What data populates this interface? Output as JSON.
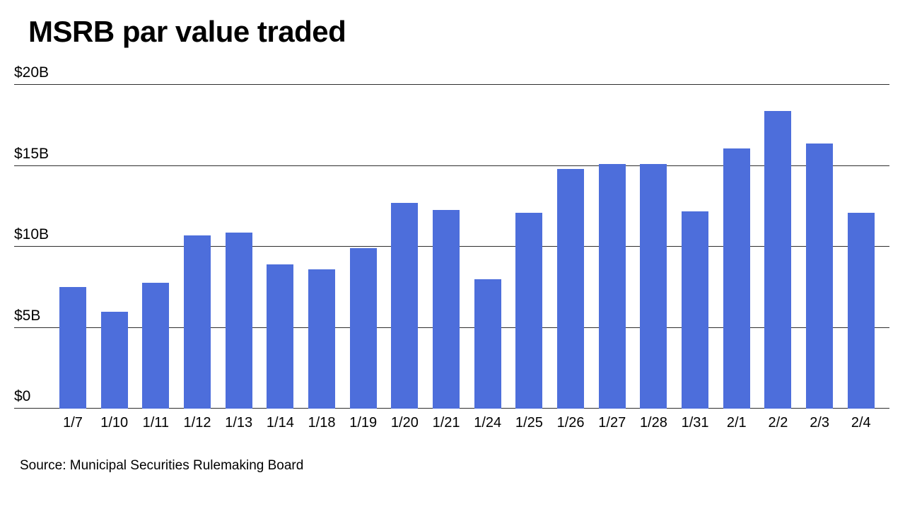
{
  "chart_data": {
    "type": "bar",
    "title": "MSRB par value traded",
    "categories": [
      "1/7",
      "1/10",
      "1/11",
      "1/12",
      "1/13",
      "1/14",
      "1/18",
      "1/19",
      "1/20",
      "1/21",
      "1/24",
      "1/25",
      "1/26",
      "1/27",
      "1/28",
      "1/31",
      "2/1",
      "2/2",
      "2/3",
      "2/4"
    ],
    "values": [
      7.5,
      6.0,
      7.8,
      10.7,
      10.9,
      8.9,
      8.6,
      9.9,
      12.7,
      12.3,
      8.0,
      12.1,
      14.8,
      15.1,
      15.1,
      12.2,
      16.1,
      18.4,
      16.4,
      12.1
    ],
    "xlabel": "",
    "ylabel": "",
    "ylim": [
      0,
      20
    ],
    "yticks": [
      {
        "value": 0,
        "label": "$0"
      },
      {
        "value": 5,
        "label": "$5B"
      },
      {
        "value": 10,
        "label": "$10B"
      },
      {
        "value": 15,
        "label": "$15B"
      },
      {
        "value": 20,
        "label": "$20B"
      }
    ],
    "grid": true,
    "legend": "none",
    "bar_color": "#4D6EDB",
    "gridline_color": "#2e2e2e",
    "source": "Source: Municipal Securities Rulemaking Board"
  }
}
